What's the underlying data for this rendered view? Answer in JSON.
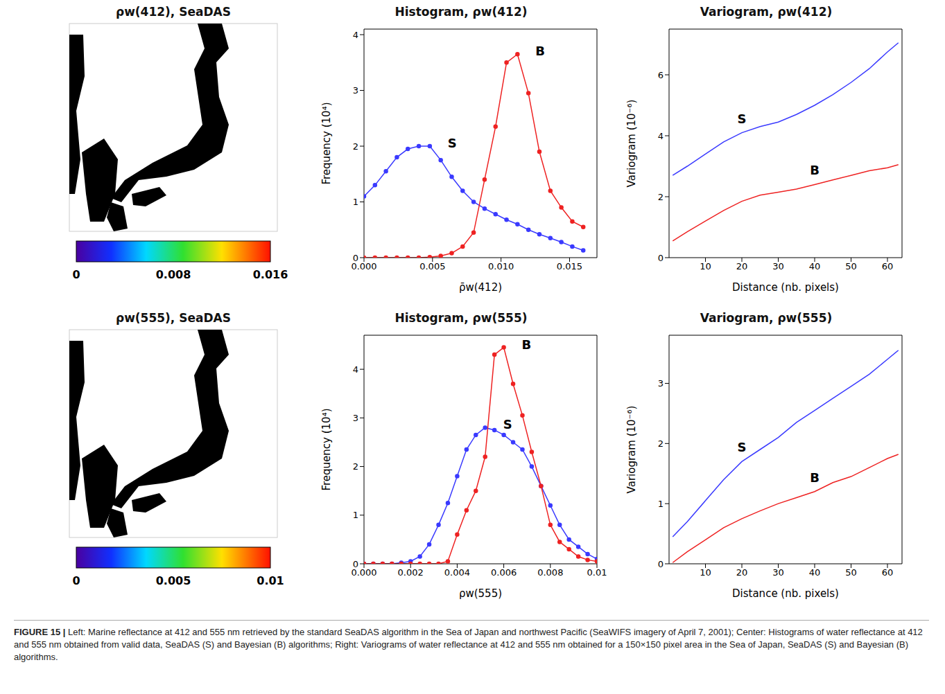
{
  "chart_data": [
    {
      "type": "map",
      "title": "ρw(412), SeaDAS",
      "colorbar": {
        "range": [
          0,
          0.016
        ],
        "ticks": [
          0,
          0.008,
          0.016
        ]
      }
    },
    {
      "type": "line",
      "title": "Histogram, ρw(412)",
      "x_label": "ρ̄w(412)",
      "y_label": "Frequency (10⁴)",
      "x": [
        0,
        0.0008,
        0.0016,
        0.0024,
        0.0032,
        0.004,
        0.0048,
        0.0056,
        0.0064,
        0.0072,
        0.008,
        0.0088,
        0.0096,
        0.0104,
        0.0112,
        0.012,
        0.0128,
        0.0136,
        0.0144,
        0.0152,
        0.016
      ],
      "series": [
        {
          "name": "S",
          "color": "#3a3aff",
          "marker": "circle",
          "values": [
            1.1,
            1.3,
            1.55,
            1.8,
            1.95,
            2.0,
            2.0,
            1.75,
            1.45,
            1.2,
            1.0,
            0.88,
            0.78,
            0.68,
            0.6,
            0.5,
            0.42,
            0.35,
            0.28,
            0.2,
            0.13
          ]
        },
        {
          "name": "B",
          "color": "#ee2222",
          "marker": "circle",
          "values": [
            0,
            0,
            0,
            0,
            0,
            0,
            0.01,
            0.03,
            0.08,
            0.2,
            0.45,
            1.4,
            2.35,
            3.5,
            3.65,
            2.95,
            1.9,
            1.2,
            0.9,
            0.65,
            0.55
          ]
        }
      ],
      "xlim": [
        0,
        0.017
      ],
      "xticks": [
        {
          "value": 0,
          "label": "0.000"
        },
        0.005,
        {
          "value": 0.01,
          "label": "0.010"
        },
        0.015
      ],
      "ylim": [
        0,
        4.1
      ],
      "yticks": [
        0,
        1,
        2,
        3,
        4
      ]
    },
    {
      "type": "line",
      "title": "Variogram, ρw(412)",
      "x_label": "Distance (nb. pixels)",
      "y_label": "Variogram (10⁻⁶)",
      "x": [
        1,
        5,
        10,
        15,
        20,
        25,
        30,
        35,
        40,
        45,
        50,
        55,
        60,
        63
      ],
      "series": [
        {
          "name": "S",
          "color": "#3a3aff",
          "values": [
            2.7,
            3.0,
            3.4,
            3.8,
            4.1,
            4.3,
            4.45,
            4.7,
            5.0,
            5.35,
            5.75,
            6.2,
            6.75,
            7.05
          ]
        },
        {
          "name": "B",
          "color": "#ee2222",
          "values": [
            0.55,
            0.85,
            1.2,
            1.55,
            1.85,
            2.05,
            2.15,
            2.25,
            2.4,
            2.55,
            2.7,
            2.85,
            2.95,
            3.05
          ]
        }
      ],
      "xlim": [
        0,
        64
      ],
      "xticks": [
        10,
        20,
        30,
        40,
        50,
        60
      ],
      "ylim": [
        0,
        7.5
      ],
      "yticks": [
        0,
        2,
        4,
        6
      ]
    },
    {
      "type": "map",
      "title": "ρw(555), SeaDAS",
      "colorbar": {
        "range": [
          0,
          0.01
        ],
        "ticks": [
          0,
          0.005,
          0.01
        ]
      }
    },
    {
      "type": "line",
      "title": "Histogram, ρw(555)",
      "x_label": "ρw(555)",
      "y_label": "Frequency (10⁴)",
      "x": [
        0,
        0.0004,
        0.0008,
        0.0012,
        0.0016,
        0.002,
        0.0024,
        0.0028,
        0.0032,
        0.0036,
        0.004,
        0.0044,
        0.0048,
        0.0052,
        0.0056,
        0.006,
        0.0064,
        0.0068,
        0.0072,
        0.0076,
        0.008,
        0.0084,
        0.0088,
        0.0092,
        0.0096,
        0.01
      ],
      "series": [
        {
          "name": "S",
          "color": "#3a3aff",
          "marker": "circle",
          "values": [
            0,
            0,
            0,
            0,
            0.02,
            0.05,
            0.15,
            0.4,
            0.8,
            1.25,
            1.8,
            2.35,
            2.65,
            2.8,
            2.75,
            2.65,
            2.5,
            2.35,
            2.0,
            1.6,
            1.2,
            0.8,
            0.5,
            0.35,
            0.2,
            0.1
          ]
        },
        {
          "name": "B",
          "color": "#ee2222",
          "marker": "circle",
          "values": [
            0,
            0,
            0,
            0,
            0,
            0,
            0,
            0,
            0,
            0.05,
            0.6,
            1.1,
            1.5,
            2.2,
            4.3,
            4.45,
            3.7,
            3.05,
            2.3,
            1.6,
            0.8,
            0.45,
            0.3,
            0.15,
            0.08,
            0.05
          ]
        }
      ],
      "xlim": [
        0,
        0.01
      ],
      "xticks": [
        {
          "value": 0,
          "label": "0.000"
        },
        0.002,
        0.004,
        0.006,
        0.008,
        0.01
      ],
      "ylim": [
        0,
        4.7
      ],
      "yticks": [
        0,
        1,
        2,
        3,
        4
      ]
    },
    {
      "type": "line",
      "title": "Variogram, ρw(555)",
      "x_label": "Distance (nb. pixels)",
      "y_label": "Variogram (10⁻⁶)",
      "x": [
        1,
        5,
        10,
        15,
        20,
        25,
        30,
        35,
        40,
        45,
        50,
        55,
        60,
        63
      ],
      "series": [
        {
          "name": "S",
          "color": "#3a3aff",
          "values": [
            0.45,
            0.7,
            1.05,
            1.4,
            1.7,
            1.9,
            2.1,
            2.35,
            2.55,
            2.75,
            2.95,
            3.15,
            3.4,
            3.55
          ]
        },
        {
          "name": "B",
          "color": "#ee2222",
          "values": [
            0.02,
            0.2,
            0.4,
            0.6,
            0.75,
            0.88,
            1.0,
            1.1,
            1.2,
            1.35,
            1.45,
            1.6,
            1.75,
            1.82
          ]
        }
      ],
      "xlim": [
        0,
        64
      ],
      "xticks": [
        10,
        20,
        30,
        40,
        50,
        60
      ],
      "ylim": [
        0,
        3.8
      ],
      "yticks": [
        0,
        1,
        2,
        3
      ]
    }
  ],
  "caption": {
    "label": "FIGURE 15 |",
    "text": "Left: Marine reflectance at 412 and 555 nm retrieved by the standard SeaDAS algorithm in the Sea of Japan and northwest Pacific (SeaWIFS imagery of April 7, 2001); Center: Histograms of water reflectance at 412 and 555 nm obtained from valid data, SeaDAS (S) and Bayesian (B) algorithms; Right: Variograms of water reflectance at 412 and 555 nm obtained for a 150×150 pixel area in the Sea of Japan, SeaDAS (S) and Bayesian (B) algorithms."
  }
}
